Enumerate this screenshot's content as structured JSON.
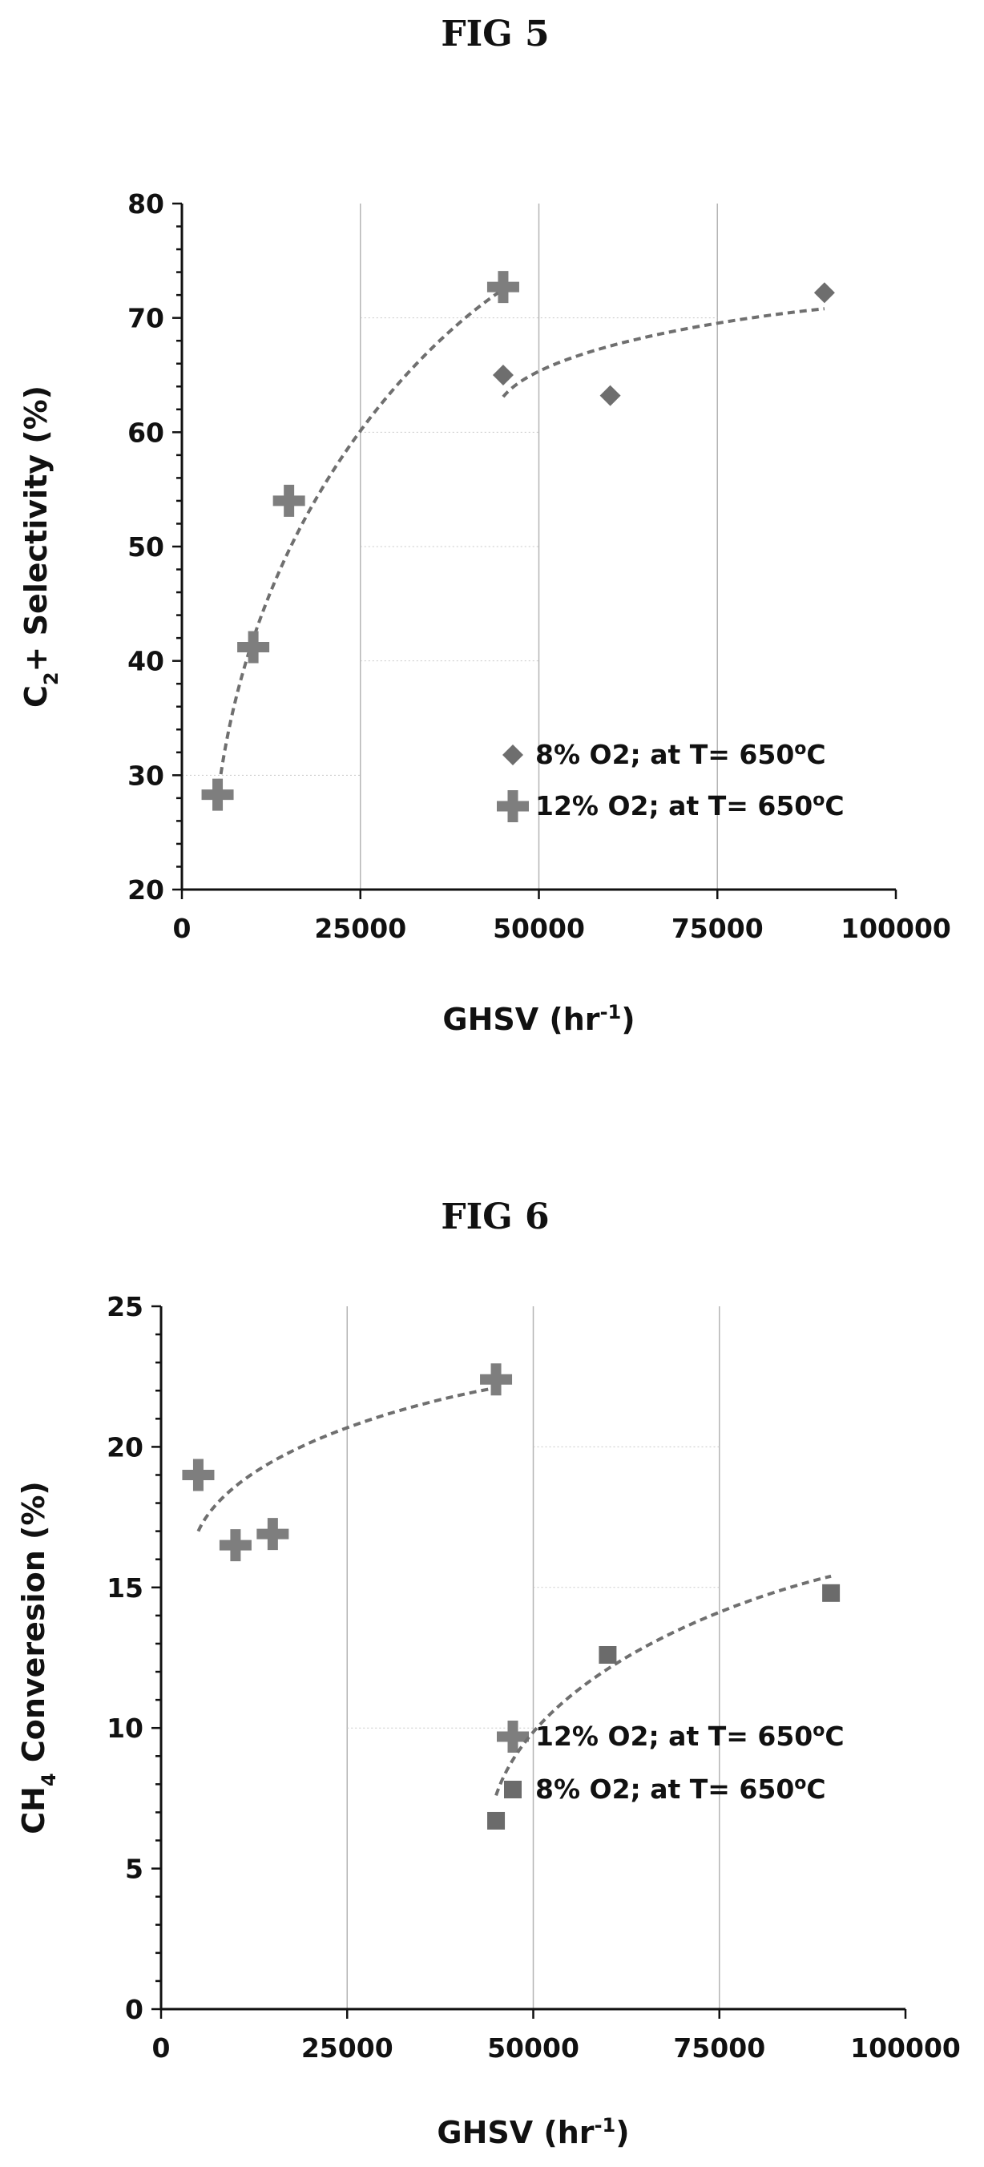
{
  "figures": {
    "fig5_title": "FIG 5",
    "fig6_title": "FIG 6"
  },
  "marker_colors": {
    "plus": "#7e7e7e",
    "diamond": "#6e6e6e",
    "square": "#6b6b6b",
    "trendline": "#6f6f6f"
  },
  "chart_data": [
    {
      "id": "fig5",
      "type": "scatter",
      "title": "FIG 5",
      "xlabel": {
        "main": "GHSV (hr",
        "sup": "-1",
        "end": ")"
      },
      "ylabel": {
        "pre": "C",
        "sub": "2",
        "post": "+ Selectivity (%)"
      },
      "xlim": [
        0,
        100000
      ],
      "ylim": [
        20,
        80
      ],
      "xticks": [
        0,
        25000,
        50000,
        75000,
        100000
      ],
      "xtick_labels": [
        "0",
        "25000",
        "50000",
        "75000",
        "100000"
      ],
      "yticks": [
        20,
        30,
        40,
        50,
        60,
        70,
        80
      ],
      "ytick_labels": [
        "20",
        "30",
        "40",
        "50",
        "60",
        "70",
        "80"
      ],
      "grid": "partial",
      "legend_position": "bottom-right",
      "series": [
        {
          "name": "8% O2; at T= 650°C",
          "legend": {
            "main": "8% O2; at T= 650",
            "sup": "o",
            "end": "C"
          },
          "marker": "diamond",
          "x": [
            45000,
            60000,
            90000
          ],
          "y": [
            65.0,
            63.2,
            72.2
          ],
          "trend": {
            "x_from": 45000,
            "x_to": 90000,
            "y": [
              63.1,
              70.8
            ]
          }
        },
        {
          "name": "12% O2; at T= 650°C",
          "legend": {
            "main": "12% O2; at T= 650",
            "sup": "o",
            "end": "C"
          },
          "marker": "plus",
          "x": [
            5000,
            10000,
            15000,
            45000
          ],
          "y": [
            28.3,
            41.2,
            54.0,
            72.7
          ],
          "trend": {
            "x_from": 5000,
            "x_to": 45000,
            "y": [
              28.0,
              72.5
            ]
          }
        }
      ]
    },
    {
      "id": "fig6",
      "type": "scatter",
      "title": "FIG 6",
      "xlabel": {
        "main": "GHSV (hr",
        "sup": "-1",
        "end": ")"
      },
      "ylabel": {
        "pre": "CH",
        "sub": "4",
        "post": " Converesion (%)"
      },
      "xlim": [
        0,
        100000
      ],
      "ylim": [
        0,
        25
      ],
      "xticks": [
        0,
        25000,
        50000,
        75000,
        100000
      ],
      "xtick_labels": [
        "0",
        "25000",
        "50000",
        "75000",
        "100000"
      ],
      "yticks": [
        0,
        5,
        10,
        15,
        20,
        25
      ],
      "ytick_labels": [
        "0",
        "5",
        "10",
        "15",
        "20",
        "25"
      ],
      "grid": "partial",
      "legend_position": "bottom-right",
      "series": [
        {
          "name": "12% O2; at T= 650°C",
          "legend": {
            "main": "12% O2; at T= 650",
            "sup": "o",
            "end": "C"
          },
          "marker": "plus",
          "x": [
            5000,
            10000,
            15000,
            45000
          ],
          "y": [
            19.0,
            16.5,
            16.9,
            22.4
          ],
          "trend": {
            "x_from": 5000,
            "x_to": 45000,
            "y": [
              17.0,
              22.1
            ]
          }
        },
        {
          "name": "8% O2; at T= 650°C",
          "legend": {
            "main": "8% O2; at T= 650",
            "sup": "o",
            "end": "C"
          },
          "marker": "square",
          "x": [
            45000,
            60000,
            90000
          ],
          "y": [
            6.7,
            12.6,
            14.8
          ],
          "trend": {
            "x_from": 45000,
            "x_to": 90000,
            "y": [
              7.6,
              15.4
            ]
          }
        }
      ]
    }
  ]
}
